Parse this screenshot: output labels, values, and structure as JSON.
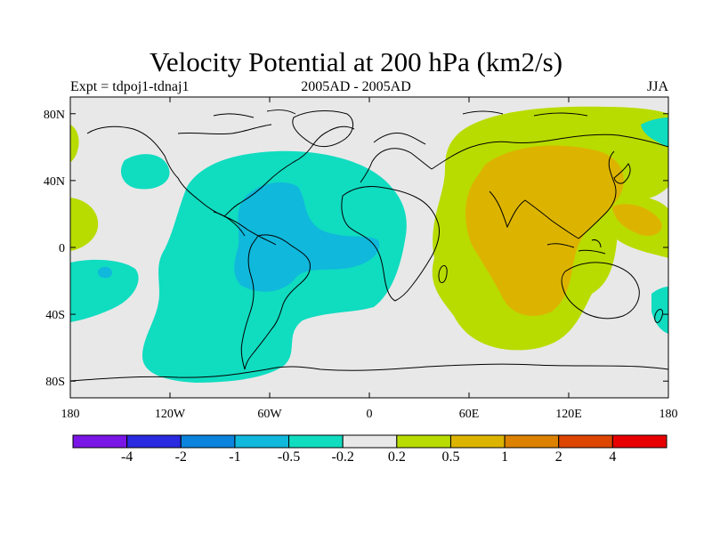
{
  "title": "Velocity Potential at 200 hPa (km2/s)",
  "subtitle_left": "Expt = tdpoj1-tdnaj1",
  "subtitle_center": "2005AD - 2005AD",
  "subtitle_right": "JJA",
  "lat_labels": [
    "80N",
    "40N",
    "0",
    "40S",
    "80S"
  ],
  "lon_labels": [
    "180",
    "120W",
    "60W",
    "0",
    "60E",
    "120E",
    "180"
  ],
  "colorbar": {
    "colors": [
      "#7a16e6",
      "#2a2ae0",
      "#0a84dc",
      "#10b8dc",
      "#10dcc0",
      "#e8e8e8",
      "#b8dc00",
      "#dcb400",
      "#dc8200",
      "#dc4600",
      "#e80000"
    ],
    "labels": [
      "-4",
      "-2",
      "-1",
      "-0.5",
      "-0.2",
      "0.2",
      "0.5",
      "1",
      "2",
      "4"
    ]
  },
  "field_colors": {
    "background": "#e8e8e8",
    "neg_weak": "#10dcc0",
    "neg_mod": "#10b8dc",
    "pos_weak": "#b8dc00",
    "pos_mod": "#dcb400",
    "coast": "#000000"
  }
}
